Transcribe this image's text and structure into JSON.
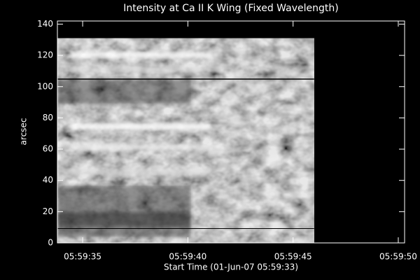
{
  "chart_data": {
    "type": "image",
    "title": "Intensity at Ca II K Wing (Fixed Wavelength)",
    "xlabel": "Start Time (01-Jun-07 05:59:33)",
    "ylabel": "arcsec",
    "xlim": [
      21573.8,
      21590.3
    ],
    "ylim": [
      0,
      142
    ],
    "xticks": [
      {
        "value": 21575,
        "label": "05:59:35"
      },
      {
        "value": 21580,
        "label": "05:59:40"
      },
      {
        "value": 21585,
        "label": "05:59:45"
      },
      {
        "value": 21590,
        "label": "05:59:50"
      }
    ],
    "yticks": [
      0,
      20,
      40,
      60,
      80,
      100,
      120,
      140
    ],
    "image_xlim": [
      21573.8,
      21586
    ],
    "image_ylim": [
      0,
      131
    ],
    "background": "#000000",
    "axis_color": "#ffffff"
  }
}
